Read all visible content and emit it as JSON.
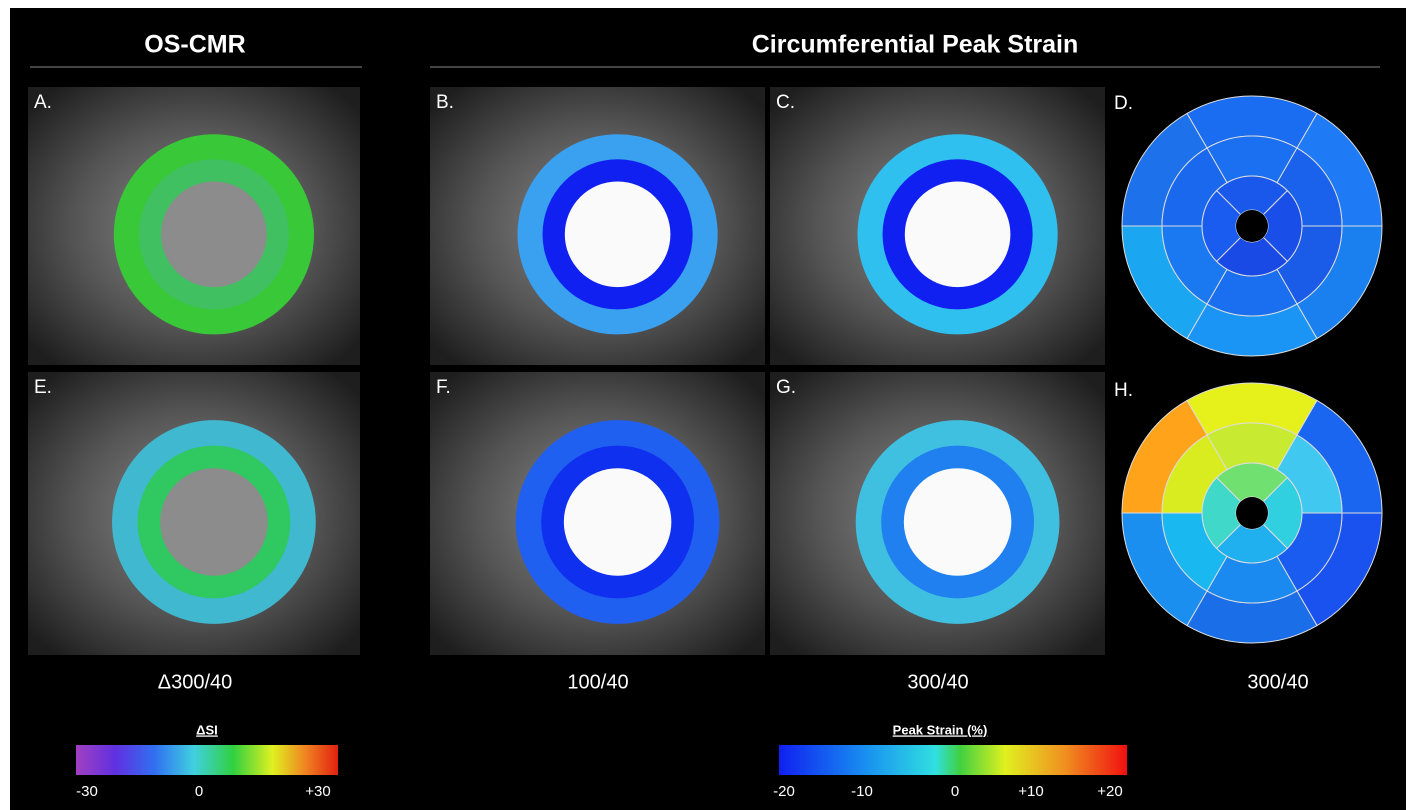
{
  "headers": {
    "left": "OS-CMR",
    "right": "Circumferential Peak Strain"
  },
  "panels": [
    {
      "label": "A."
    },
    {
      "label": "B."
    },
    {
      "label": "C."
    },
    {
      "label": "D."
    },
    {
      "label": "E."
    },
    {
      "label": "F."
    },
    {
      "label": "G."
    },
    {
      "label": "H."
    }
  ],
  "captions": [
    "Δ300/40",
    "100/40",
    "300/40",
    "300/40"
  ],
  "colorbars": [
    {
      "title": "ΔSI",
      "ticks": [
        "-30",
        "0",
        "+30"
      ]
    },
    {
      "title": "Peak Strain (%)",
      "ticks": [
        "-20",
        "-10",
        "0",
        "+10",
        "+20"
      ]
    }
  ]
}
